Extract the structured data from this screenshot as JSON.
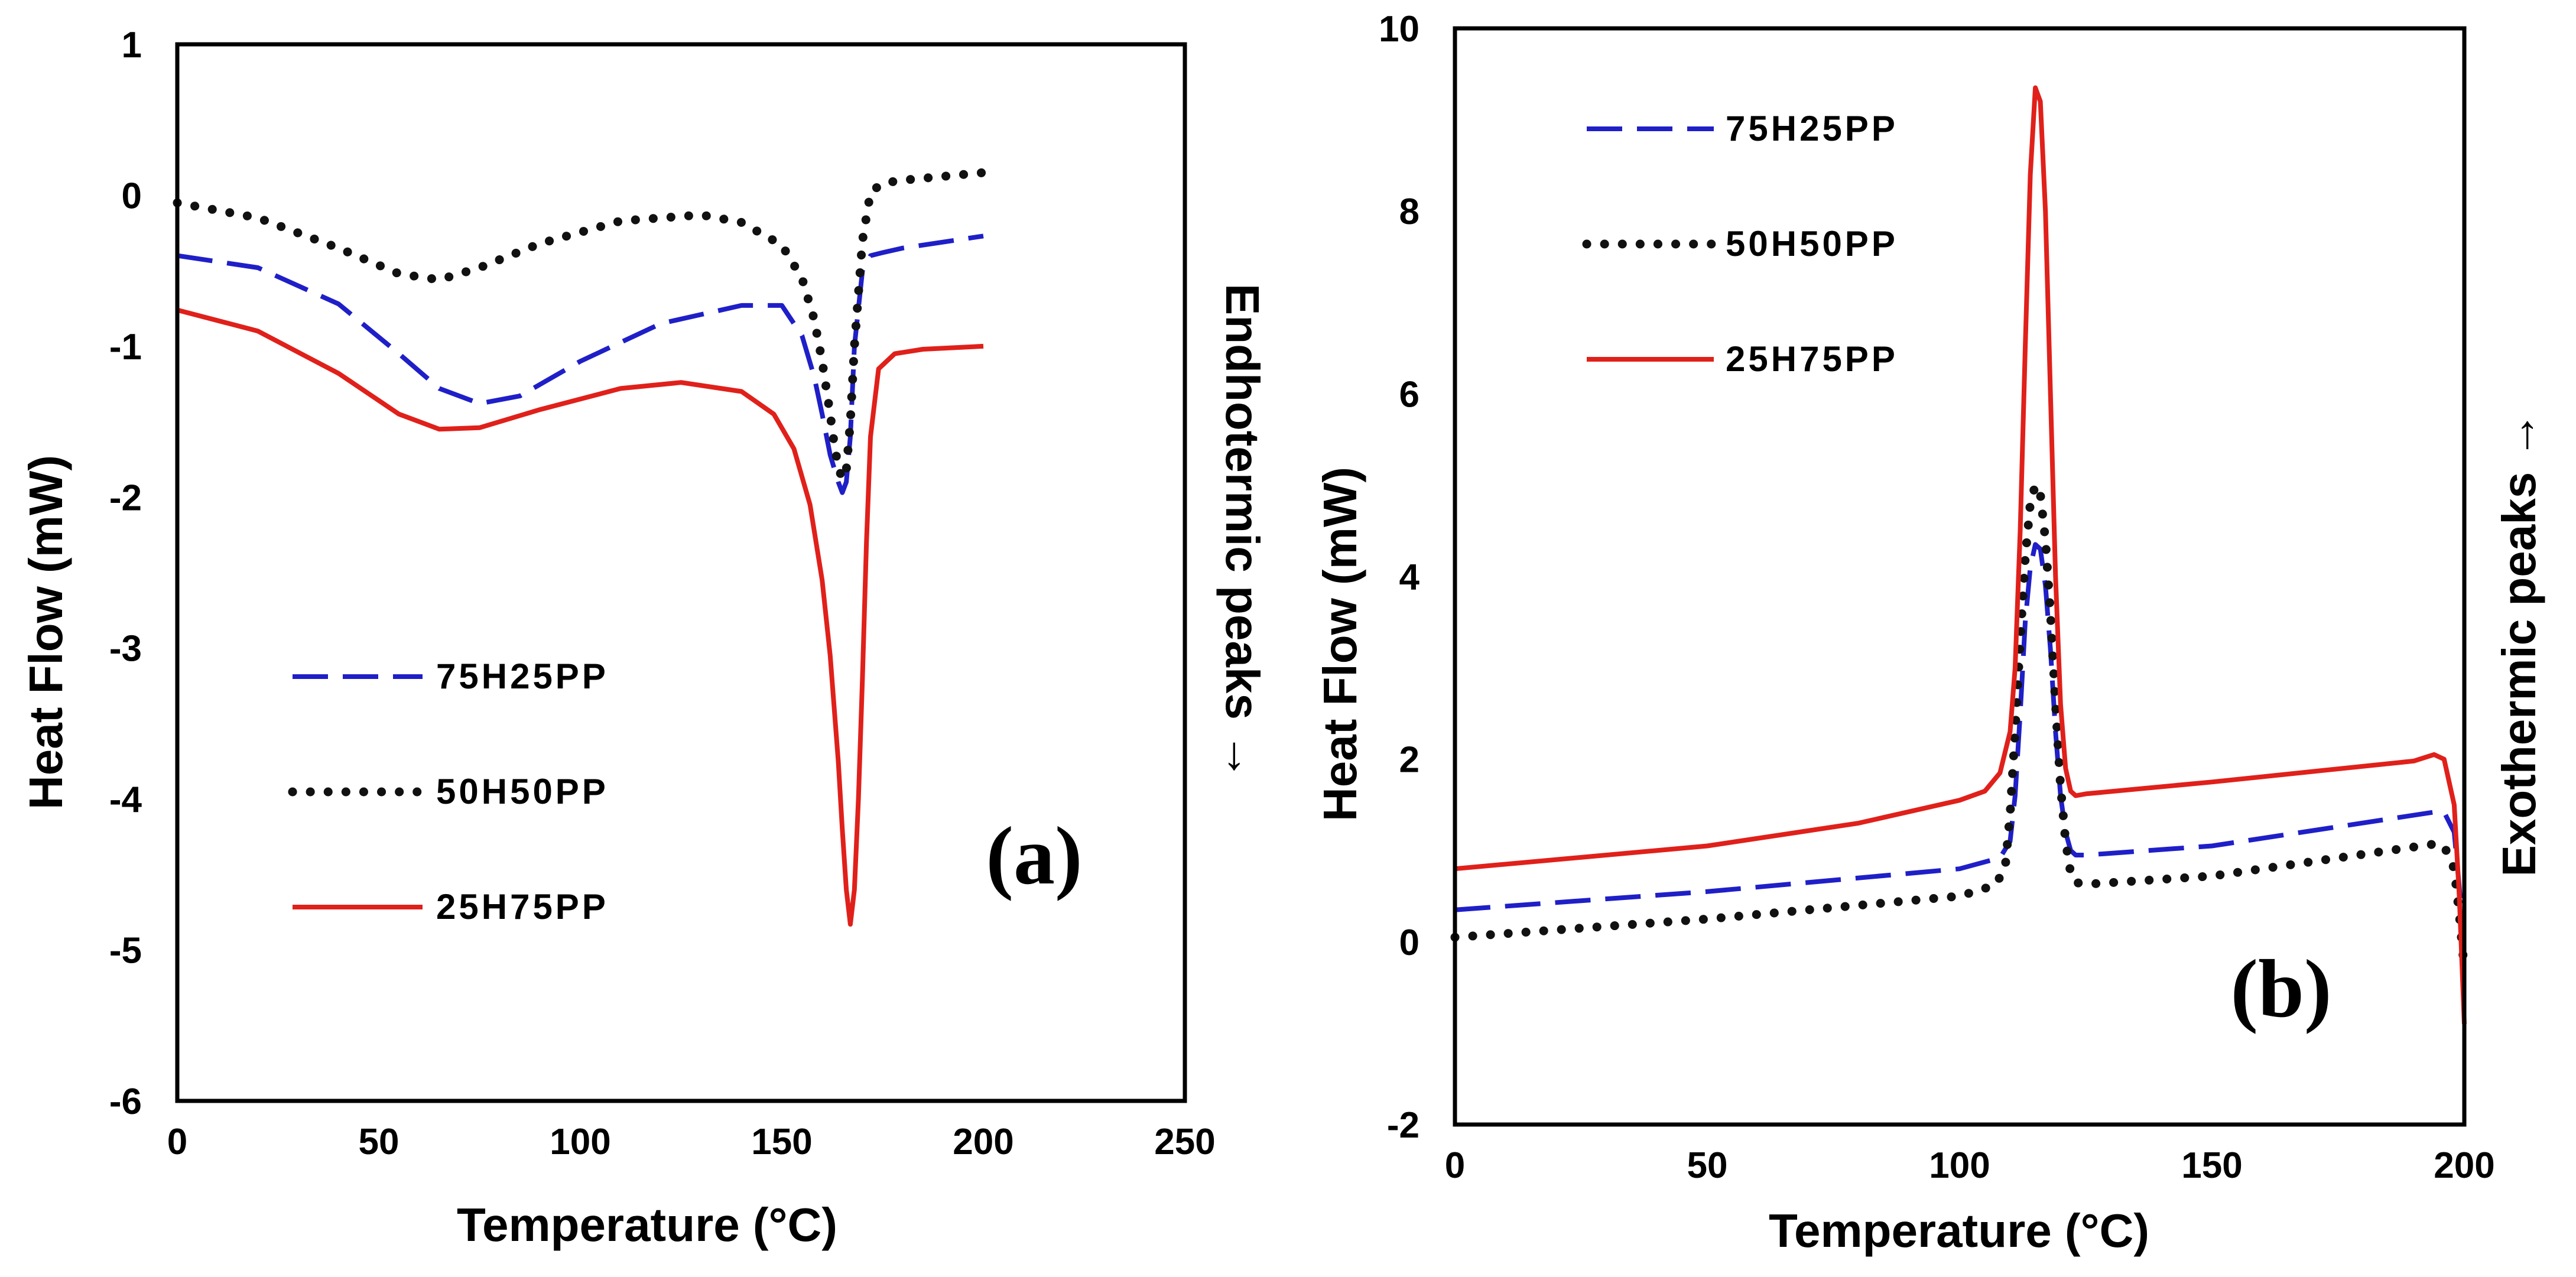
{
  "chart_data": [
    {
      "type": "line",
      "panel_label": "(a)",
      "xlabel": "Temperature (°C)",
      "ylabel": "Heat Flow (mW)",
      "side_label": "Endhotermic peaks →",
      "xlim": [
        0,
        250
      ],
      "ylim": [
        -6,
        1
      ],
      "xticks": [
        "0",
        "50",
        "100",
        "150",
        "200",
        "250"
      ],
      "yticks": [
        "-6",
        "-5",
        "-4",
        "-3",
        "-2",
        "-1",
        "0",
        "1"
      ],
      "legend": [
        "75H25PP",
        "50H50PP",
        "25H75PP"
      ],
      "series": [
        {
          "name": "75H25PP",
          "color": "#1f1fc8",
          "style": "dashed",
          "x": [
            0,
            20,
            40,
            55,
            65,
            75,
            85,
            100,
            120,
            140,
            150,
            155,
            158,
            160,
            162,
            164,
            165,
            166,
            167,
            168,
            170,
            172,
            175,
            180,
            200
          ],
          "y": [
            -0.4,
            -0.48,
            -0.72,
            -1.05,
            -1.28,
            -1.38,
            -1.33,
            -1.1,
            -0.85,
            -0.73,
            -0.73,
            -0.93,
            -1.2,
            -1.45,
            -1.72,
            -1.9,
            -1.97,
            -1.9,
            -1.6,
            -1.0,
            -0.5,
            -0.4,
            -0.38,
            -0.35,
            -0.27
          ]
        },
        {
          "name": "50H50PP",
          "color": "#111111",
          "style": "dotted",
          "x": [
            0,
            20,
            40,
            55,
            65,
            75,
            90,
            110,
            130,
            140,
            150,
            155,
            158,
            160,
            162,
            163,
            164,
            165,
            166,
            167,
            168,
            170,
            172,
            175,
            180,
            200
          ],
          "y": [
            -0.05,
            -0.15,
            -0.35,
            -0.52,
            -0.56,
            -0.48,
            -0.32,
            -0.17,
            -0.13,
            -0.18,
            -0.33,
            -0.55,
            -0.82,
            -1.1,
            -1.45,
            -1.65,
            -1.8,
            -1.88,
            -1.82,
            -1.5,
            -1.0,
            -0.3,
            0.02,
            0.08,
            0.1,
            0.15
          ]
        },
        {
          "name": "25H75PP",
          "color": "#e0201a",
          "style": "solid",
          "x": [
            0,
            20,
            40,
            55,
            65,
            75,
            90,
            110,
            125,
            140,
            148,
            153,
            157,
            160,
            162,
            164,
            165,
            166,
            167,
            168,
            169,
            170,
            171,
            172,
            174,
            178,
            185,
            200
          ],
          "y": [
            -0.76,
            -0.9,
            -1.18,
            -1.45,
            -1.55,
            -1.54,
            -1.42,
            -1.28,
            -1.24,
            -1.3,
            -1.45,
            -1.68,
            -2.05,
            -2.55,
            -3.05,
            -3.75,
            -4.2,
            -4.6,
            -4.83,
            -4.6,
            -4.0,
            -3.2,
            -2.3,
            -1.6,
            -1.15,
            -1.05,
            -1.02,
            -1.0
          ]
        }
      ]
    },
    {
      "type": "line",
      "panel_label": "(b)",
      "xlabel": "Temperature (°C)",
      "ylabel": "Heat Flow (mW)",
      "side_label": "Exothermic peaks →",
      "xlim": [
        0,
        200
      ],
      "ylim": [
        -2,
        10
      ],
      "xticks": [
        "0",
        "50",
        "100",
        "150",
        "200"
      ],
      "yticks": [
        "-2",
        "0",
        "2",
        "4",
        "6",
        "8",
        "10"
      ],
      "legend": [
        "75H25PP",
        "50H50PP",
        "25H75PP"
      ],
      "series": [
        {
          "name": "75H25PP",
          "color": "#1f1fc8",
          "style": "dashed",
          "x": [
            0,
            50,
            100,
            108,
            110,
            111,
            112,
            113,
            114,
            115,
            116,
            117,
            118,
            119,
            120,
            121,
            122,
            123,
            125,
            150,
            194,
            196,
            198,
            199,
            200
          ],
          "y": [
            0.35,
            0.55,
            0.8,
            0.92,
            1.1,
            1.6,
            2.5,
            3.5,
            4.1,
            4.35,
            4.3,
            3.9,
            3.2,
            2.3,
            1.6,
            1.2,
            1.0,
            0.95,
            0.95,
            1.05,
            1.42,
            1.42,
            1.2,
            0.6,
            -0.1
          ]
        },
        {
          "name": "50H50PP",
          "color": "#111111",
          "style": "dotted",
          "x": [
            0,
            50,
            100,
            107,
            109,
            110,
            111,
            112,
            113,
            114,
            115,
            116,
            117,
            118,
            119,
            120,
            121,
            122,
            123,
            125,
            150,
            194,
            196,
            198,
            199,
            200
          ],
          "y": [
            0.05,
            0.25,
            0.5,
            0.62,
            0.8,
            1.4,
            2.3,
            3.3,
            4.2,
            4.8,
            5.0,
            4.9,
            4.4,
            3.6,
            2.6,
            1.7,
            1.1,
            0.75,
            0.65,
            0.63,
            0.72,
            1.07,
            1.05,
            0.8,
            0.3,
            -0.3
          ]
        },
        {
          "name": "25H75PP",
          "color": "#e0201a",
          "style": "solid",
          "x": [
            0,
            50,
            80,
            100,
            105,
            108,
            110,
            111,
            112,
            113,
            114,
            115,
            116,
            117,
            118,
            119,
            120,
            121,
            122,
            123,
            125,
            150,
            190,
            194,
            196,
            198,
            199,
            200
          ],
          "y": [
            0.8,
            1.05,
            1.3,
            1.55,
            1.65,
            1.85,
            2.3,
            3.0,
            4.5,
            6.5,
            8.4,
            9.35,
            9.2,
            8.0,
            6.0,
            4.0,
            2.6,
            1.9,
            1.65,
            1.6,
            1.62,
            1.75,
            1.98,
            2.05,
            2.0,
            1.5,
            0.5,
            -0.9
          ]
        }
      ]
    }
  ]
}
